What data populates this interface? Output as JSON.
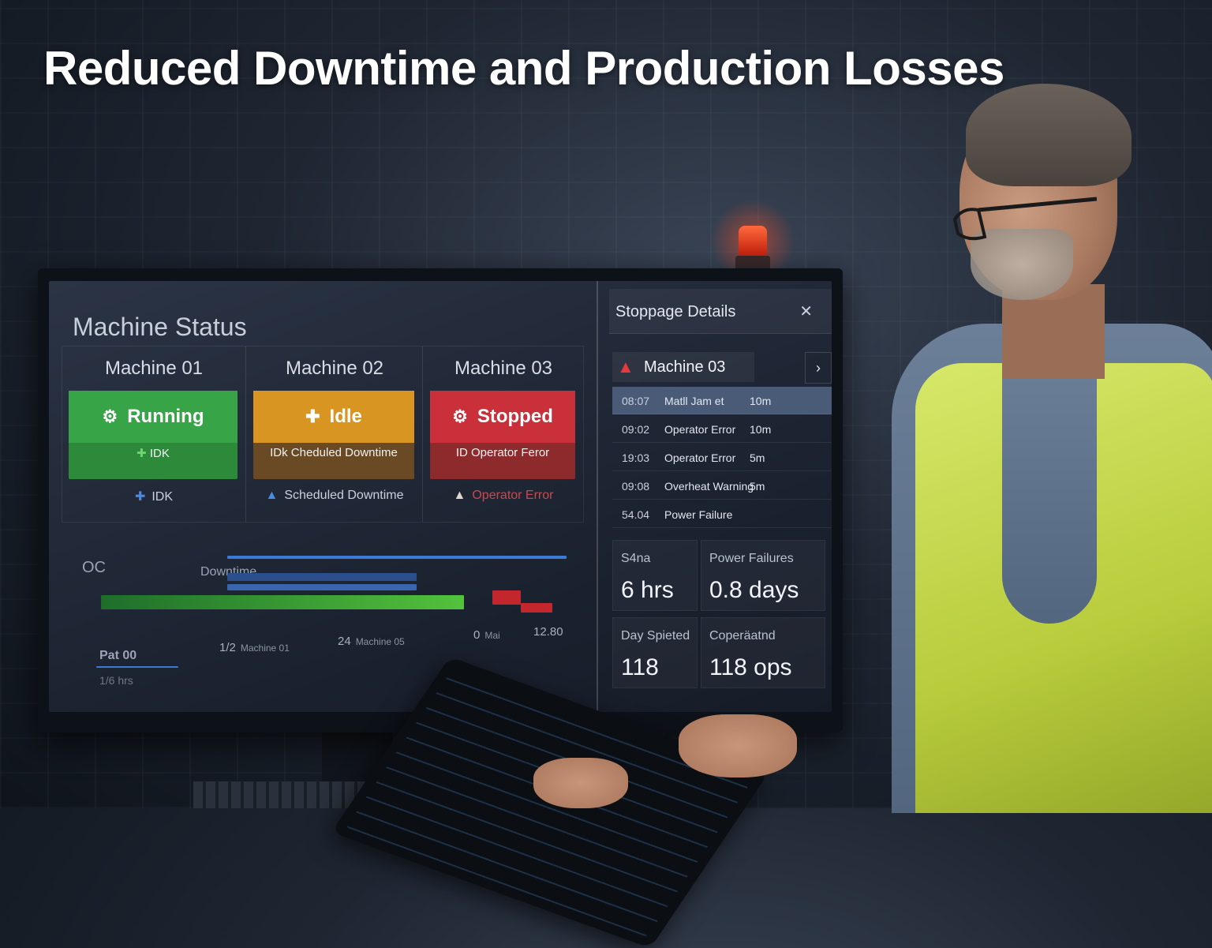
{
  "headline": "Reduced Downtime and Production Losses",
  "dashboard": {
    "title": "Machine Status",
    "machines": [
      {
        "name": "Machine 01",
        "status": "Running",
        "status_icon": "gear-icon",
        "sub": "IDK",
        "footer": "IDK",
        "color": "#37a447"
      },
      {
        "name": "Machine 02",
        "status": "Idle",
        "status_icon": "plus-icon",
        "sub": "IDk Cheduled Downtime",
        "footer": "Scheduled Downtime",
        "color": "#d99522"
      },
      {
        "name": "Machine 03",
        "status": "Stopped",
        "status_icon": "gear-icon",
        "sub": "ID Operator Feror",
        "footer": "Operator Error",
        "color": "#c9303a"
      }
    ],
    "chart": {
      "label_left": "OC",
      "label_series": "Downtime",
      "ticks": [
        {
          "value": "1/2",
          "label": "Machine 01"
        },
        {
          "value": "24",
          "label": "Machine 05"
        },
        {
          "value": "0",
          "label": "Mai"
        },
        {
          "value": "12.80",
          "label": ""
        }
      ],
      "footer_main": "Pat 00",
      "footer_sub": "1/6 hrs"
    }
  },
  "stoppage": {
    "title": "Stoppage Details",
    "machine": "Machine 03",
    "events": [
      {
        "time": "08:07",
        "reason": "Matll Jam et",
        "duration": "10m",
        "selected": true
      },
      {
        "time": "09:02",
        "reason": "Operator Error",
        "duration": "10m"
      },
      {
        "time": "19:03",
        "reason": "Operator Error",
        "duration": "5m"
      },
      {
        "time": "09:08",
        "reason": "Overheat Warning",
        "duration": "5m"
      },
      {
        "time": "54.04",
        "reason": "Power Failure",
        "duration": ""
      }
    ],
    "stats": [
      {
        "label": "S4na",
        "value": "6 hrs"
      },
      {
        "label": "Power   Failures",
        "value": "0.8 days"
      },
      {
        "label": "Day Spieted",
        "value": "118"
      },
      {
        "label": "Coperäatnd",
        "value": "118 ops"
      }
    ]
  }
}
